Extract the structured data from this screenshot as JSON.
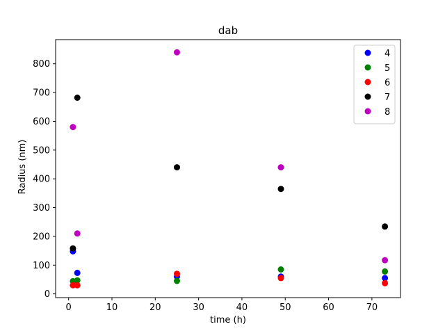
{
  "chart_data": {
    "type": "scatter",
    "title": "dab",
    "xlabel": "time (h)",
    "ylabel": "Radius (nm)",
    "xlim": [
      -3,
      76.6
    ],
    "ylim": [
      -13,
      884
    ],
    "xticks": [
      0,
      10,
      20,
      30,
      40,
      50,
      60,
      70
    ],
    "yticks": [
      0,
      100,
      200,
      300,
      400,
      500,
      600,
      700,
      800
    ],
    "grid": false,
    "legend": "top-right",
    "series": [
      {
        "name": "4",
        "color": "#0000ff",
        "points": [
          [
            1,
            148
          ],
          [
            2,
            73
          ],
          [
            25,
            60
          ],
          [
            49,
            60
          ],
          [
            73,
            55
          ]
        ]
      },
      {
        "name": "5",
        "color": "#008000",
        "points": [
          [
            1,
            44
          ],
          [
            2,
            47
          ],
          [
            25,
            45
          ],
          [
            49,
            85
          ],
          [
            73,
            78
          ]
        ]
      },
      {
        "name": "6",
        "color": "#ff0000",
        "points": [
          [
            1,
            30
          ],
          [
            2,
            30
          ],
          [
            25,
            70
          ],
          [
            49,
            55
          ],
          [
            73,
            37
          ]
        ]
      },
      {
        "name": "7",
        "color": "#000000",
        "points": [
          [
            1,
            158
          ],
          [
            2,
            682
          ],
          [
            25,
            440
          ],
          [
            49,
            365
          ],
          [
            73,
            234
          ]
        ]
      },
      {
        "name": "8",
        "color": "#bf00bf",
        "points": [
          [
            1,
            580
          ],
          [
            2,
            210
          ],
          [
            25,
            840
          ],
          [
            49,
            440
          ],
          [
            73,
            117
          ]
        ]
      }
    ]
  }
}
